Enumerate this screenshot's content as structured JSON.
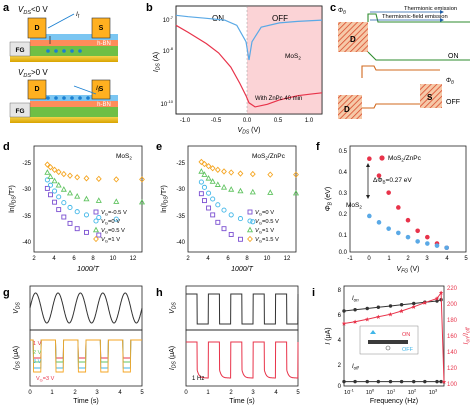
{
  "panels": {
    "a": {
      "letter": "a",
      "top_vds": "V",
      "top_vds_sub": "DS",
      "top_vds_rel": "<0 V",
      "bot_vds": "V",
      "bot_vds_sub": "DS",
      "bot_vds_rel": ">0 V",
      "label_d": "D",
      "label_s": "S",
      "label_fg": "FG",
      "label_hbn": "h-BN",
      "label_it": "I",
      "label_it_sub": "t",
      "colors": {
        "gate": "#e8b400",
        "gate_dark": "#c98c00",
        "fg": "#6fbf45",
        "hbn": "#ff8c5a",
        "hbn_light": "#ffc39e",
        "mos2": "#7bc6f2",
        "contact": "#ffb020",
        "electron": "#1a7fd1"
      }
    },
    "b": {
      "letter": "b",
      "region_on": "ON",
      "region_off": "OFF",
      "legend_mos2": "MoS",
      "legend_mos2_sub": "2",
      "legend_znpc": "With ZnPc 40 min",
      "ylabel": "I",
      "ylabel_sub": "DS",
      "ylabel_unit": " (A)",
      "xlabel": "V",
      "xlabel_sub": "DS",
      "xlabel_unit": " (V)",
      "xticks": [
        "-1.0",
        "-0.5",
        "0.0",
        "0.5",
        "1.0"
      ],
      "yticks": [
        "10",
        "10",
        "10"
      ],
      "yticks_exp": [
        "-7",
        "-8",
        "-10"
      ],
      "colors": {
        "mos2": "#5aa9e6",
        "znpc": "#e8334a",
        "off_region": "#fbd3d6"
      }
    },
    "c": {
      "letter": "c",
      "phi_b": "Φ",
      "phi_b_sub": "B",
      "thermionic": "Thermionic emission",
      "thermionic_field": "Thermionic-field emission",
      "label_d": "D",
      "label_s": "S",
      "state_on": "ON",
      "state_off": "OFF",
      "colors": {
        "band_on": "#2e8b2e",
        "band_off": "#d2691e",
        "hatch": "#d94a2b"
      }
    },
    "d": {
      "letter": "d",
      "title": "MoS",
      "title_sub": "2",
      "ylabel": "ln(I",
      "ylabel_sub": "DS",
      "ylabel_tail": "/T²)",
      "xlabel": "1000/T",
      "xticks": [
        "2",
        "4",
        "6",
        "8",
        "10",
        "12"
      ],
      "yticks": [
        "-25",
        "-30",
        "-35",
        "-40"
      ],
      "legend": [
        {
          "pre": "V",
          "sub": "G",
          "text": "=-0.5 V",
          "color": "#7b4fd1",
          "marker": "square"
        },
        {
          "pre": "V",
          "sub": "G",
          "text": "=0 V",
          "color": "#3fb6e8",
          "marker": "circle"
        },
        {
          "pre": "V",
          "sub": "G",
          "text": "=0.5 V",
          "color": "#62c462",
          "marker": "triangle"
        },
        {
          "pre": "V",
          "sub": "G",
          "text": "=1 V",
          "color": "#f5a623",
          "marker": "diamond"
        }
      ]
    },
    "e": {
      "letter": "e",
      "title": "MoS",
      "title_sub": "2",
      "title_tail": "/ZnPc",
      "ylabel": "ln(I",
      "ylabel_sub": "DS",
      "ylabel_tail": "/T²)",
      "xlabel": "1000/T",
      "xticks": [
        "2",
        "4",
        "6",
        "8",
        "10",
        "12"
      ],
      "yticks": [
        "-25",
        "-30",
        "-35",
        "-40"
      ],
      "legend": [
        {
          "pre": "V",
          "sub": "G",
          "text": "=0 V",
          "color": "#7b4fd1",
          "marker": "square"
        },
        {
          "pre": "V",
          "sub": "G",
          "text": "=0.5 V",
          "color": "#3fb6e8",
          "marker": "circle"
        },
        {
          "pre": "V",
          "sub": "G",
          "text": "=1 V",
          "color": "#62c462",
          "marker": "triangle"
        },
        {
          "pre": "V",
          "sub": "G",
          "text": "=1.5 V",
          "color": "#f5a623",
          "marker": "diamond"
        }
      ]
    },
    "f": {
      "letter": "f",
      "legend_znpc": "MoS",
      "legend_znpc_sub": "2",
      "legend_znpc_tail": "/ZnPc",
      "annot_delta": "ΔΦ",
      "annot_delta_sub": "B",
      "annot_delta_tail": "=0.27 eV",
      "annot_mos2": "MoS",
      "annot_mos2_sub": "2",
      "ylabel": "Φ",
      "ylabel_sub": "B",
      "ylabel_unit": " (eV)",
      "xlabel": "V",
      "xlabel_sub": "FG",
      "xlabel_unit": " (V)",
      "xticks": [
        "-1",
        "0",
        "1",
        "2",
        "3",
        "4",
        "5"
      ],
      "yticks": [
        "0.5",
        "0.4",
        "0.3",
        "0.2",
        "0.1",
        "0.0"
      ],
      "colors": {
        "znpc": "#e8334a",
        "mos2": "#5aa9e6"
      }
    },
    "g": {
      "letter": "g",
      "top_ylabel": "V",
      "top_ylabel_sub": "DS",
      "bot_ylabel": "I",
      "bot_ylabel_sub": "DS",
      "bot_ylabel_unit": " (μA)",
      "xlabel": "Time (s)",
      "xticks": [
        "0",
        "1",
        "2",
        "3",
        "4",
        "5"
      ],
      "labels_v": [
        {
          "text": "1 V",
          "color": "#e8334a"
        },
        {
          "text": "2 V",
          "color": "#62c462"
        },
        {
          "text": "3 V",
          "color": "#3fb6e8"
        }
      ],
      "label_vg": "V",
      "label_vg_sub": "G",
      "label_vg_tail": "=3 V",
      "colors": {
        "v1": "#e8334a",
        "v2": "#f5a623",
        "v3": "#3fb6e8",
        "v4": "#62c462",
        "top": "#333333"
      }
    },
    "h": {
      "letter": "h",
      "top_ylabel": "V",
      "top_ylabel_sub": "DS",
      "bot_ylabel": "I",
      "bot_ylabel_sub": "DS",
      "bot_ylabel_unit": " (μA)",
      "xlabel": "Time (s)",
      "xticks": [
        "0",
        "1",
        "2",
        "3",
        "4",
        "5"
      ],
      "freq_label": "1 Hz",
      "colors": {
        "top": "#333333",
        "bot": "#e8334a"
      }
    },
    "i": {
      "letter": "i",
      "ylabel_left": "I",
      "ylabel_left_unit": " (μA)",
      "ylabel_right": "I",
      "ylabel_right_sub": "on",
      "ylabel_right_tail": "/I",
      "ylabel_right_sub2": "off",
      "xlabel": "Frequency (Hz)",
      "label_ion": "I",
      "label_ion_sub": "on",
      "label_ioff": "I",
      "label_ioff_sub": "off",
      "label_on": "ON",
      "label_off": "OFF",
      "yticks_left": [
        "8",
        "6",
        "4",
        "2",
        "0"
      ],
      "yticks_right": [
        "220",
        "200",
        "180",
        "160",
        "140",
        "120",
        "100"
      ],
      "xticks": [
        "10",
        "10",
        "10",
        "10",
        "10"
      ],
      "xticks_exp": [
        "-1",
        "0",
        "1",
        "2",
        "3"
      ],
      "colors": {
        "ion": "#333333",
        "ratio": "#e8334a",
        "inset_on": "#e8334a",
        "inset_off": "#3fb6e8"
      }
    }
  },
  "chart_data": [
    {
      "type": "line",
      "panel": "b",
      "xlabel": "VDS (V)",
      "ylabel": "IDS (A)",
      "xlim": [
        -1.2,
        1.2
      ],
      "log_y": true,
      "series": [
        {
          "name": "MoS2",
          "x": [
            -1.2,
            -1.0,
            -0.7,
            -0.4,
            -0.2,
            -0.05,
            0.0,
            0.05,
            0.2,
            0.5,
            0.8,
            1.2
          ],
          "y": [
            8e-07,
            7e-07,
            6e-07,
            5e-07,
            3e-07,
            6e-08,
            1e-08,
            6e-08,
            2.5e-07,
            3.8e-07,
            4.4e-07,
            5e-07
          ]
        },
        {
          "name": "With ZnPc 40 min",
          "x": [
            -1.2,
            -1.0,
            -0.7,
            -0.5,
            -0.3,
            -0.15,
            -0.05,
            0.0,
            0.1,
            0.3,
            0.5,
            0.8,
            1.0,
            1.2
          ],
          "y": [
            3e-07,
            1.5e-07,
            5e-08,
            2e-08,
            5e-09,
            1e-09,
            3e-10,
            1.5e-10,
            1e-10,
            1.3e-10,
            2e-10,
            3e-10,
            3.5e-10,
            4e-10
          ]
        }
      ]
    },
    {
      "type": "scatter",
      "panel": "d",
      "title": "MoS2",
      "xlabel": "1000/T",
      "ylabel": "ln(IDS/T²)",
      "xlim": [
        2,
        13
      ],
      "ylim": [
        -42,
        -22
      ],
      "series": [
        {
          "name": "VG=-0.5 V",
          "x": [
            3.3,
            3.6,
            4.0,
            4.4,
            4.9,
            5.5,
            6.2,
            7.1,
            8.3
          ],
          "y": [
            -30.0,
            -31.2,
            -32.6,
            -34.0,
            -35.4,
            -36.6,
            -37.6,
            -38.3,
            -38.8
          ]
        },
        {
          "name": "VG=0 V",
          "x": [
            3.3,
            3.6,
            4.0,
            4.4,
            4.9,
            5.5,
            6.2,
            7.1,
            8.3,
            10.0
          ],
          "y": [
            -28.4,
            -29.4,
            -30.5,
            -31.6,
            -32.7,
            -33.6,
            -34.4,
            -35.0,
            -35.5,
            -35.8
          ]
        },
        {
          "name": "VG=0.5 V",
          "x": [
            3.3,
            3.6,
            4.0,
            4.4,
            4.9,
            5.5,
            6.2,
            7.1,
            8.3,
            10.0,
            12.5
          ],
          "y": [
            -27.0,
            -27.8,
            -28.6,
            -29.4,
            -30.2,
            -30.9,
            -31.5,
            -32.0,
            -32.3,
            -32.5,
            -32.6
          ]
        },
        {
          "name": "VG=1 V",
          "x": [
            3.3,
            3.6,
            4.0,
            4.4,
            4.9,
            5.5,
            6.2,
            7.1,
            8.3,
            10.0,
            12.5
          ],
          "y": [
            -25.5,
            -26.0,
            -26.5,
            -26.9,
            -27.3,
            -27.6,
            -27.9,
            -28.1,
            -28.2,
            -28.3,
            -28.3
          ]
        }
      ]
    },
    {
      "type": "scatter",
      "panel": "e",
      "title": "MoS2/ZnPc",
      "xlabel": "1000/T",
      "ylabel": "ln(IDS/T²)",
      "xlim": [
        2,
        13
      ],
      "ylim": [
        -42,
        -22
      ],
      "series": [
        {
          "name": "VG=0 V",
          "x": [
            3.3,
            3.6,
            4.0,
            4.4,
            4.9,
            5.5,
            6.2,
            7.1
          ],
          "y": [
            -31.0,
            -32.3,
            -33.7,
            -35.0,
            -36.4,
            -37.6,
            -38.7,
            -39.6
          ]
        },
        {
          "name": "VG=0.5 V",
          "x": [
            3.3,
            3.6,
            4.0,
            4.4,
            4.9,
            5.5,
            6.2,
            7.1,
            8.3
          ],
          "y": [
            -28.8,
            -29.8,
            -30.9,
            -32.0,
            -33.1,
            -34.1,
            -35.0,
            -35.7,
            -36.3
          ]
        },
        {
          "name": "VG=1 V",
          "x": [
            3.3,
            3.6,
            4.0,
            4.4,
            4.9,
            5.5,
            6.2,
            7.1,
            8.3,
            10.0,
            12.5
          ],
          "y": [
            -26.8,
            -27.4,
            -28.1,
            -28.7,
            -29.3,
            -29.8,
            -30.2,
            -30.5,
            -30.7,
            -30.8,
            -30.9
          ]
        },
        {
          "name": "VG=1.5 V",
          "x": [
            3.3,
            3.6,
            4.0,
            4.4,
            4.9,
            5.5,
            6.2,
            7.1,
            8.3,
            10.0,
            12.5
          ],
          "y": [
            -25.0,
            -25.4,
            -25.8,
            -26.2,
            -26.5,
            -26.8,
            -27.0,
            -27.2,
            -27.3,
            -27.4,
            -27.4
          ]
        }
      ]
    },
    {
      "type": "scatter",
      "panel": "f",
      "xlabel": "VFG (V)",
      "ylabel": "ΦB (eV)",
      "xlim": [
        -1,
        5
      ],
      "ylim": [
        0,
        0.5
      ],
      "series": [
        {
          "name": "MoS2/ZnPc",
          "x": [
            0,
            0.5,
            1.0,
            1.5,
            2.0,
            2.5,
            3.0,
            3.5,
            4.0
          ],
          "y": [
            0.44,
            0.36,
            0.28,
            0.21,
            0.15,
            0.1,
            0.07,
            0.04,
            0.02
          ]
        },
        {
          "name": "MoS2",
          "x": [
            0,
            0.5,
            1.0,
            1.5,
            2.0,
            2.5,
            3.0,
            3.5,
            4.0
          ],
          "y": [
            0.17,
            0.14,
            0.11,
            0.09,
            0.07,
            0.05,
            0.04,
            0.03,
            0.02
          ]
        }
      ]
    },
    {
      "type": "line",
      "panel": "g",
      "xlabel": "Time (s)",
      "xlim": [
        0,
        5
      ],
      "series": [
        {
          "name": "VDS (sine)",
          "frequency_hz": 1,
          "amplitude": 1
        },
        {
          "name": "1 V",
          "pulse_depth": 0.45
        },
        {
          "name": "2 V",
          "pulse_depth": 0.55
        },
        {
          "name": "3 V",
          "pulse_depth": 0.7
        },
        {
          "name": "VG=3 V",
          "pulse_depth": 0.8
        }
      ]
    },
    {
      "type": "line",
      "panel": "h",
      "xlabel": "Time (s)",
      "xlim": [
        0,
        5
      ],
      "series": [
        {
          "name": "VDS (square)",
          "frequency_hz": 1
        },
        {
          "name": "IDS",
          "frequency_hz": 1
        }
      ]
    },
    {
      "type": "line",
      "panel": "i",
      "xlabel": "Frequency (Hz)",
      "ylabel": "I (μA)",
      "log_x": true,
      "ylim_left": [
        0,
        8
      ],
      "ylim_right": [
        100,
        220
      ],
      "series": [
        {
          "name": "Ion",
          "x": [
            0.1,
            0.3,
            1,
            3,
            10,
            30,
            100,
            300,
            1000,
            1500
          ],
          "y": [
            6.0,
            6.1,
            6.2,
            6.3,
            6.4,
            6.5,
            6.6,
            6.7,
            6.8,
            6.9
          ]
        },
        {
          "name": "Ioff",
          "x": [
            0.1,
            0.3,
            1,
            3,
            10,
            30,
            100,
            300,
            1000,
            1500
          ],
          "y": [
            0.35,
            0.35,
            0.35,
            0.35,
            0.35,
            0.35,
            0.35,
            0.35,
            0.35,
            0.35
          ]
        },
        {
          "name": "Ion/Ioff",
          "axis": "right",
          "x": [
            0.1,
            0.3,
            1,
            3,
            10,
            30,
            100,
            300,
            1000,
            1500,
            2000
          ],
          "y": [
            175,
            177,
            180,
            183,
            186,
            190,
            195,
            200,
            205,
            212,
            105
          ]
        }
      ]
    }
  ]
}
